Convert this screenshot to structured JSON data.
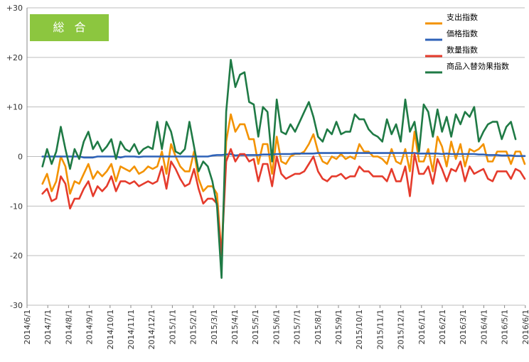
{
  "badge": "総合",
  "chart_data": {
    "type": "line",
    "ylim": [
      -30,
      30
    ],
    "yticks": [
      30,
      20,
      10,
      0,
      -10,
      -20,
      -30
    ],
    "ytick_labels": [
      "+30",
      "+20",
      "+10",
      "0",
      "-10",
      "-20",
      "-30"
    ],
    "xtick_labels": [
      "2014/6/1",
      "2014/7/1",
      "2014/8/1",
      "2014/9/1",
      "2014/10/1",
      "2014/11/1",
      "2014/12/1",
      "2015/1/1",
      "2015/2/1",
      "2015/3/1",
      "2015/4/1",
      "2015/5/1",
      "2015/6/1",
      "2015/7/1",
      "2015/8/1",
      "2015/9/1",
      "2015/10/1",
      "2015/11/1",
      "2015/12/1",
      "2016/1/1",
      "2016/2/1",
      "2016/3/1",
      "2016/4/1",
      "2016/5/1",
      "2016/6/1"
    ],
    "legend_position": "top-right",
    "grid": "horizontal",
    "series": [
      {
        "name": "支出指数",
        "color": "#f39200",
        "values": [
          -5.5,
          -3.5,
          -7,
          -5,
          0,
          -2,
          -7.5,
          -5,
          -5.5,
          -3.5,
          -1.5,
          -4.5,
          -3,
          -4,
          -3,
          -1.5,
          -5,
          -2,
          -2.5,
          -3,
          -2,
          -3.5,
          -3,
          -2,
          -2.5,
          -2,
          1,
          -3.5,
          2.5,
          0,
          -2,
          -3,
          -3,
          1,
          -4.5,
          -7,
          -6,
          -6,
          -7.5,
          -20,
          3,
          8.5,
          5,
          6.5,
          6.5,
          3.5,
          3.5,
          -1.5,
          2.5,
          2.5,
          -3.5,
          4,
          -1,
          -1.5,
          0,
          0.5,
          0.5,
          1,
          2.5,
          4.5,
          1,
          -1,
          -1.5,
          0,
          -0.5,
          0.5,
          -0.5,
          0,
          -0.5,
          2.5,
          1,
          1,
          0,
          0,
          -0.5,
          -1.5,
          1.5,
          -1,
          -1.5,
          1.5,
          -3,
          5,
          -1,
          -1,
          1.5,
          -3,
          4,
          2,
          -2,
          3,
          -0.5,
          2.5,
          -2,
          1.5,
          1,
          1.5,
          2.5,
          -1,
          -1,
          1,
          1,
          1,
          -1.5,
          1,
          1,
          -1.5
        ]
      },
      {
        "name": "価格指数",
        "color": "#2e62b8",
        "values": [
          0,
          0,
          0,
          0,
          0,
          0,
          0,
          0,
          0,
          -0.2,
          -0.2,
          -0.2,
          0,
          0,
          0,
          0,
          0,
          -0.2,
          0,
          0,
          0,
          -0.1,
          0,
          0,
          0,
          0,
          0,
          0,
          0,
          0,
          0,
          0,
          0,
          0,
          0,
          0,
          0,
          0.2,
          0.3,
          0.3,
          0.4,
          0.5,
          0.2,
          0.3,
          0.3,
          0.3,
          0.3,
          0.3,
          0.4,
          0.4,
          0.4,
          0.5,
          0.5,
          0.5,
          0.5,
          0.6,
          0.6,
          0.6,
          0.6,
          0.6,
          0.7,
          0.7,
          0.7,
          0.7,
          0.7,
          0.7,
          0.7,
          0.7,
          0.7,
          0.7,
          0.7,
          0.7,
          0.7,
          0.7,
          0.7,
          0.7,
          0.7,
          0.7,
          0.7,
          0.7,
          0.7,
          0.7,
          0.6,
          0.6,
          0.6,
          0.6,
          0.6,
          0.5,
          0.6,
          0.5,
          0.5,
          0.5,
          0.5,
          0.5,
          0.5,
          0.4,
          0.4,
          0.3,
          0.3,
          0.3,
          0.2,
          0.2,
          0.2,
          0.1,
          0.1,
          0.1
        ]
      },
      {
        "name": "数量指数",
        "color": "#e53b2c",
        "values": [
          -7.5,
          -6.5,
          -9,
          -8.5,
          -4,
          -5.5,
          -10.5,
          -8.5,
          -8.5,
          -6.5,
          -5,
          -8,
          -6,
          -7,
          -6,
          -4,
          -7,
          -5,
          -5,
          -5.5,
          -5,
          -6,
          -5.5,
          -5,
          -5.5,
          -5,
          -2,
          -6.5,
          -1,
          -2.5,
          -4.5,
          -6,
          -5.5,
          -2.5,
          -6.5,
          -9.5,
          -8.5,
          -8.5,
          -9.5,
          -20,
          -1,
          1.5,
          -1,
          0.5,
          0.5,
          -1,
          -0.5,
          -5,
          -1.5,
          -1.5,
          -6,
          0,
          -3.5,
          -4.5,
          -4,
          -3.5,
          -3.5,
          -3,
          -1.5,
          0,
          -3,
          -4.5,
          -5,
          -4,
          -4,
          -3.5,
          -4.5,
          -4,
          -4,
          -2,
          -3,
          -3,
          -4,
          -4,
          -4,
          -5,
          -2.5,
          -5,
          -5,
          -2,
          -8,
          0.5,
          -3.5,
          -3.5,
          -2,
          -5.5,
          -0.5,
          -2.5,
          -5,
          -2.5,
          -3,
          -1,
          -5,
          -2,
          -3.5,
          -3,
          -2.5,
          -4.5,
          -5,
          -3,
          -3,
          -3,
          -4.5,
          -2.5,
          -3,
          -4.5
        ]
      },
      {
        "name": "商品入替効果指数",
        "color": "#1f7a45",
        "values": [
          -2,
          1.5,
          -1.5,
          1,
          6,
          1.5,
          -2.5,
          1.5,
          -0.5,
          3,
          5,
          1.5,
          3,
          1,
          2,
          3.5,
          -0.5,
          3,
          1.5,
          1,
          2.5,
          0.5,
          1.5,
          2,
          1.5,
          7,
          1.5,
          7,
          5,
          1,
          0.5,
          1.5,
          7,
          2,
          -3,
          -1,
          -2,
          -5,
          -10,
          -24.5,
          9,
          19.5,
          14,
          16.5,
          17,
          11,
          10.5,
          4,
          10,
          9,
          -1,
          11.5,
          5,
          4.5,
          6.5,
          5,
          7,
          9,
          11,
          8,
          4,
          3,
          5.5,
          4.5,
          7,
          4.5,
          5,
          5,
          8.5,
          7.5,
          7.5,
          5.5,
          4.5,
          4,
          3,
          7.5,
          4.5,
          6.5,
          3,
          11.5,
          5,
          7,
          1,
          10.5,
          9,
          4,
          9.5,
          5,
          8,
          4,
          8.5,
          6.5,
          9,
          8,
          10,
          3,
          5,
          6.5,
          7,
          7,
          3.5,
          6,
          7,
          3.5
        ]
      }
    ]
  }
}
